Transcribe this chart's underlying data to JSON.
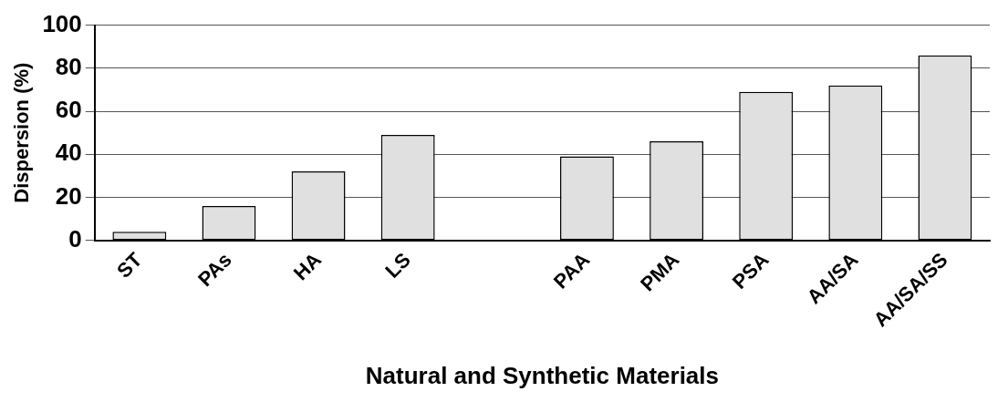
{
  "chart_data": {
    "type": "bar",
    "xlabel": "Natural and Synthetic Materials",
    "ylabel": "Dispersion (%)",
    "categories": [
      "ST",
      "PAs",
      "HA",
      "LS",
      null,
      "PAA",
      "PMA",
      "PSA",
      "AA/SA",
      "AA/SA/SS"
    ],
    "values": [
      4,
      16,
      32,
      49,
      null,
      39,
      46,
      69,
      72,
      86
    ],
    "color": "#e0e0e0",
    "ylim": [
      0,
      100
    ],
    "yticks": [
      0,
      20,
      40,
      60,
      80,
      100
    ],
    "grid": "y",
    "legend": false
  }
}
